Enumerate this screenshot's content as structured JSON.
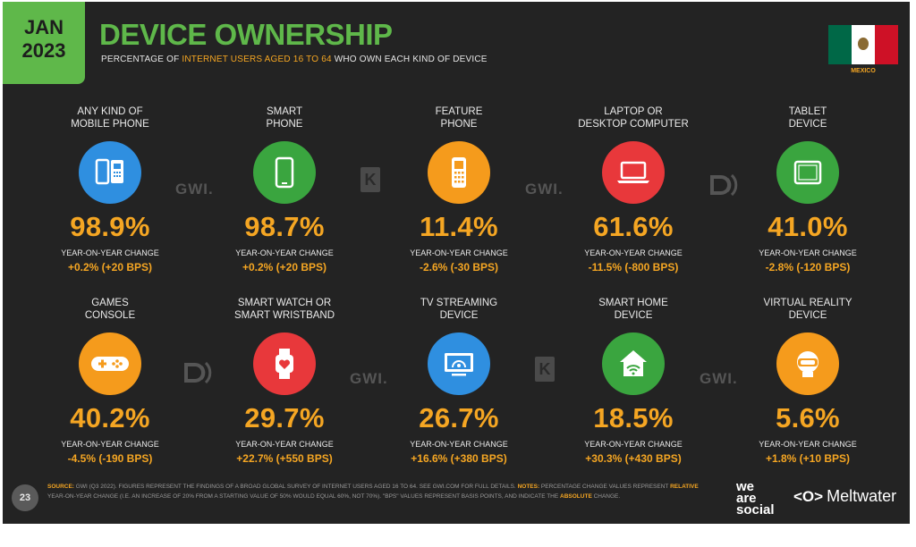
{
  "header": {
    "badge_month": "JAN",
    "badge_year": "2023",
    "title": "DEVICE OWNERSHIP",
    "subtitle_pre": "PERCENTAGE OF ",
    "subtitle_hl1": "INTERNET USERS AGED",
    "subtitle_mid": " 16 TO 64 ",
    "subtitle_post": "WHO OWN EACH KIND OF DEVICE",
    "country": "MEXICO"
  },
  "yoy_label": "YEAR-ON-YEAR CHANGE",
  "watermark": "GWI.",
  "devices": [
    {
      "label": "ANY KIND OF\nMOBILE PHONE",
      "value": "98.9%",
      "change": "+0.2% (+20 BPS)",
      "color": "#2f8fe0",
      "icon": "mobile-phones-icon"
    },
    {
      "label": "SMART\nPHONE",
      "value": "98.7%",
      "change": "+0.2% (+20 BPS)",
      "color": "#3aa53f",
      "icon": "smartphone-icon"
    },
    {
      "label": "FEATURE\nPHONE",
      "value": "11.4%",
      "change": "-2.6% (-30 BPS)",
      "color": "#f59b1c",
      "icon": "feature-phone-icon"
    },
    {
      "label": "LAPTOP OR\nDESKTOP COMPUTER",
      "value": "61.6%",
      "change": "-11.5% (-800 BPS)",
      "color": "#e8383b",
      "icon": "laptop-icon"
    },
    {
      "label": "TABLET\nDEVICE",
      "value": "41.0%",
      "change": "-2.8% (-120 BPS)",
      "color": "#3aa53f",
      "icon": "tablet-icon"
    },
    {
      "label": "GAMES\nCONSOLE",
      "value": "40.2%",
      "change": "-4.5% (-190 BPS)",
      "color": "#f59b1c",
      "icon": "gamepad-icon"
    },
    {
      "label": "SMART WATCH OR\nSMART WRISTBAND",
      "value": "29.7%",
      "change": "+22.7% (+550 BPS)",
      "color": "#e8383b",
      "icon": "smartwatch-icon"
    },
    {
      "label": "TV STREAMING\nDEVICE",
      "value": "26.7%",
      "change": "+16.6% (+380 BPS)",
      "color": "#2f8fe0",
      "icon": "tv-streaming-icon"
    },
    {
      "label": "SMART HOME\nDEVICE",
      "value": "18.5%",
      "change": "+30.3% (+430 BPS)",
      "color": "#3aa53f",
      "icon": "smart-home-icon"
    },
    {
      "label": "VIRTUAL REALITY\nDEVICE",
      "value": "5.6%",
      "change": "+1.8% (+10 BPS)",
      "color": "#f59b1c",
      "icon": "vr-headset-icon"
    }
  ],
  "footer": {
    "page_number": "23",
    "source_label": "SOURCE:",
    "source_text": " GWI (Q3 2022). FIGURES REPRESENT THE FINDINGS OF A BROAD GLOBAL SURVEY OF INTERNET USERS AGED 16 TO 64. SEE GWI.COM FOR FULL DETAILS. ",
    "notes_label": "NOTES:",
    "notes_text": " PERCENTAGE CHANGE VALUES REPRESENT ",
    "relative_word": "RELATIVE",
    "notes_text2": " YEAR-ON-YEAR CHANGE (I.E. AN INCREASE OF 20% FROM A STARTING VALUE OF 50% WOULD EQUAL 60%, NOT 70%). \"BPS\" VALUES REPRESENT BASIS POINTS, AND INDICATE THE ",
    "absolute_word": "ABSOLUTE",
    "notes_text3": " CHANGE.",
    "brand_we": "we",
    "brand_are": "are",
    "brand_social": "social",
    "brand_meltwater_mark": "<O>",
    "brand_meltwater": "Meltwater"
  }
}
